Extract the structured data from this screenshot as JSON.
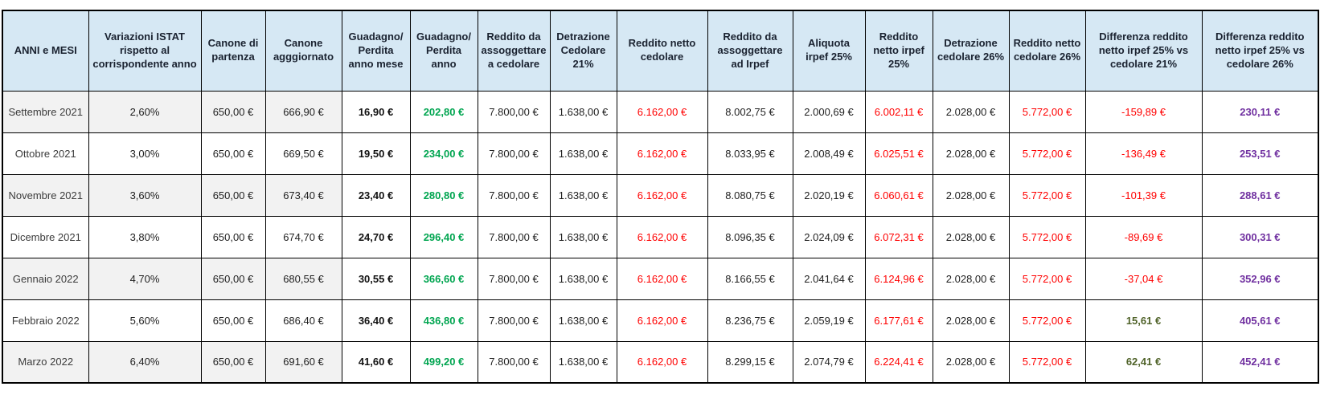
{
  "styles": {
    "header_bg": "#D6E8F4",
    "header_text": "#1A2230",
    "band_bg": "#F2F2F2",
    "gain_green": "#00A550",
    "loss_red": "#FF0000",
    "diff_purple": "#7030A0",
    "diff_olive": "#4F6228",
    "border_black": "#000000"
  },
  "table": {
    "columns": [
      {
        "id": "month",
        "label": "ANNI e MESI"
      },
      {
        "id": "variazione_istat",
        "label": "Variazioni ISTAT rispetto al corrispondente anno"
      },
      {
        "id": "canone_partenza",
        "label": "Canone di partenza"
      },
      {
        "id": "canone_aggiornato",
        "label": "Canone agggiornato"
      },
      {
        "id": "guadagno_mese",
        "label": "Guadagno/ Perdita anno mese"
      },
      {
        "id": "guadagno_anno",
        "label": "Guadagno/ Perdita anno"
      },
      {
        "id": "reddito_cedolare",
        "label": "Reddito da assoggettare a cedolare"
      },
      {
        "id": "detrazione_cedolare_21",
        "label": "Detrazione Cedolare 21%"
      },
      {
        "id": "reddito_netto_cedolare",
        "label": "Reddito netto cedolare"
      },
      {
        "id": "reddito_irpef",
        "label": "Reddito da assoggettare ad Irpef"
      },
      {
        "id": "aliquota_irpef_25",
        "label": "Aliquota irpef 25%"
      },
      {
        "id": "reddito_netto_irpef_25",
        "label": "Reddito netto irpef 25%"
      },
      {
        "id": "detrazione_cedolare_26",
        "label": "Detrazione cedolare 26%"
      },
      {
        "id": "reddito_netto_cedolare_26",
        "label": "Reddito netto cedolare 26%"
      },
      {
        "id": "diff_irpef25_vs_cedolare21",
        "label": "Differenza reddito netto irpef 25% vs cedolare 21%"
      },
      {
        "id": "diff_irpef25_vs_cedolare26",
        "label": "Differenza reddito netto irpef 25% vs cedolare 26%"
      }
    ],
    "rows": [
      {
        "month": "Settembre 2021",
        "variazione_istat": "2,60%",
        "canone_partenza": "650,00 €",
        "canone_aggiornato": "666,90 €",
        "guadagno_mese": "16,90 €",
        "guadagno_anno": "202,80 €",
        "reddito_cedolare": "7.800,00 €",
        "detrazione_cedolare_21": "1.638,00 €",
        "reddito_netto_cedolare": "6.162,00 €",
        "reddito_irpef": "8.002,75 €",
        "aliquota_irpef_25": "2.000,69 €",
        "reddito_netto_irpef_25": "6.002,11 €",
        "detrazione_cedolare_26": "2.028,00 €",
        "reddito_netto_cedolare_26": "5.772,00 €",
        "diff_irpef25_vs_cedolare21": "-159,89 €",
        "diff_irpef25_vs_cedolare26": "230,11 €",
        "banded": true
      },
      {
        "month": "Ottobre 2021",
        "variazione_istat": "3,00%",
        "canone_partenza": "650,00 €",
        "canone_aggiornato": "669,50 €",
        "guadagno_mese": "19,50 €",
        "guadagno_anno": "234,00 €",
        "reddito_cedolare": "7.800,00 €",
        "detrazione_cedolare_21": "1.638,00 €",
        "reddito_netto_cedolare": "6.162,00 €",
        "reddito_irpef": "8.033,95 €",
        "aliquota_irpef_25": "2.008,49 €",
        "reddito_netto_irpef_25": "6.025,51 €",
        "detrazione_cedolare_26": "2.028,00 €",
        "reddito_netto_cedolare_26": "5.772,00 €",
        "diff_irpef25_vs_cedolare21": "-136,49 €",
        "diff_irpef25_vs_cedolare26": "253,51 €",
        "banded": false
      },
      {
        "month": "Novembre 2021",
        "variazione_istat": "3,60%",
        "canone_partenza": "650,00 €",
        "canone_aggiornato": "673,40 €",
        "guadagno_mese": "23,40 €",
        "guadagno_anno": "280,80 €",
        "reddito_cedolare": "7.800,00 €",
        "detrazione_cedolare_21": "1.638,00 €",
        "reddito_netto_cedolare": "6.162,00 €",
        "reddito_irpef": "8.080,75 €",
        "aliquota_irpef_25": "2.020,19 €",
        "reddito_netto_irpef_25": "6.060,61 €",
        "detrazione_cedolare_26": "2.028,00 €",
        "reddito_netto_cedolare_26": "5.772,00 €",
        "diff_irpef25_vs_cedolare21": "-101,39 €",
        "diff_irpef25_vs_cedolare26": "288,61 €",
        "banded": true
      },
      {
        "month": "Dicembre 2021",
        "variazione_istat": "3,80%",
        "canone_partenza": "650,00 €",
        "canone_aggiornato": "674,70 €",
        "guadagno_mese": "24,70 €",
        "guadagno_anno": "296,40 €",
        "reddito_cedolare": "7.800,00 €",
        "detrazione_cedolare_21": "1.638,00 €",
        "reddito_netto_cedolare": "6.162,00 €",
        "reddito_irpef": "8.096,35 €",
        "aliquota_irpef_25": "2.024,09 €",
        "reddito_netto_irpef_25": "6.072,31 €",
        "detrazione_cedolare_26": "2.028,00 €",
        "reddito_netto_cedolare_26": "5.772,00 €",
        "diff_irpef25_vs_cedolare21": "-89,69 €",
        "diff_irpef25_vs_cedolare26": "300,31 €",
        "banded": false
      },
      {
        "month": "Gennaio 2022",
        "variazione_istat": "4,70%",
        "canone_partenza": "650,00 €",
        "canone_aggiornato": "680,55 €",
        "guadagno_mese": "30,55 €",
        "guadagno_anno": "366,60 €",
        "reddito_cedolare": "7.800,00 €",
        "detrazione_cedolare_21": "1.638,00 €",
        "reddito_netto_cedolare": "6.162,00 €",
        "reddito_irpef": "8.166,55 €",
        "aliquota_irpef_25": "2.041,64 €",
        "reddito_netto_irpef_25": "6.124,96 €",
        "detrazione_cedolare_26": "2.028,00 €",
        "reddito_netto_cedolare_26": "5.772,00 €",
        "diff_irpef25_vs_cedolare21": "-37,04 €",
        "diff_irpef25_vs_cedolare26": "352,96 €",
        "banded": true
      },
      {
        "month": "Febbraio 2022",
        "variazione_istat": "5,60%",
        "canone_partenza": "650,00 €",
        "canone_aggiornato": "686,40 €",
        "guadagno_mese": "36,40 €",
        "guadagno_anno": "436,80 €",
        "reddito_cedolare": "7.800,00 €",
        "detrazione_cedolare_21": "1.638,00 €",
        "reddito_netto_cedolare": "6.162,00 €",
        "reddito_irpef": "8.236,75 €",
        "aliquota_irpef_25": "2.059,19 €",
        "reddito_netto_irpef_25": "6.177,61 €",
        "detrazione_cedolare_26": "2.028,00 €",
        "reddito_netto_cedolare_26": "5.772,00 €",
        "diff_irpef25_vs_cedolare21": "15,61 €",
        "diff_irpef25_vs_cedolare26": "405,61 €",
        "banded": false
      },
      {
        "month": "Marzo 2022",
        "variazione_istat": "6,40%",
        "canone_partenza": "650,00 €",
        "canone_aggiornato": "691,60 €",
        "guadagno_mese": "41,60 €",
        "guadagno_anno": "499,20 €",
        "reddito_cedolare": "7.800,00 €",
        "detrazione_cedolare_21": "1.638,00 €",
        "reddito_netto_cedolare": "6.162,00 €",
        "reddito_irpef": "8.299,15 €",
        "aliquota_irpef_25": "2.074,79 €",
        "reddito_netto_irpef_25": "6.224,41 €",
        "detrazione_cedolare_26": "2.028,00 €",
        "reddito_netto_cedolare_26": "5.772,00 €",
        "diff_irpef25_vs_cedolare21": "62,41 €",
        "diff_irpef25_vs_cedolare26": "452,41 €",
        "banded": true
      }
    ]
  }
}
